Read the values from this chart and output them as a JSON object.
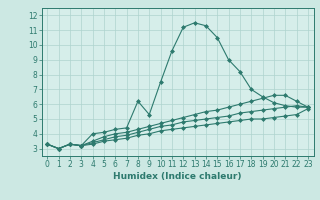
{
  "xlabel": "Humidex (Indice chaleur)",
  "x_values": [
    0,
    1,
    2,
    3,
    4,
    5,
    6,
    7,
    8,
    9,
    10,
    11,
    12,
    13,
    14,
    15,
    16,
    17,
    18,
    19,
    20,
    21,
    22,
    23
  ],
  "line1": [
    3.3,
    3.0,
    3.3,
    3.2,
    4.0,
    4.1,
    4.3,
    4.4,
    6.2,
    5.3,
    7.5,
    9.6,
    11.2,
    11.5,
    11.3,
    10.5,
    9.0,
    8.2,
    7.0,
    6.5,
    6.1,
    5.9,
    5.8,
    5.8
  ],
  "line2": [
    3.3,
    3.0,
    3.3,
    3.2,
    3.5,
    3.8,
    4.0,
    4.1,
    4.3,
    4.5,
    4.7,
    4.9,
    5.1,
    5.3,
    5.5,
    5.6,
    5.8,
    6.0,
    6.2,
    6.4,
    6.6,
    6.6,
    6.2,
    5.8
  ],
  "line3": [
    3.3,
    3.0,
    3.3,
    3.2,
    3.4,
    3.6,
    3.8,
    3.9,
    4.1,
    4.3,
    4.5,
    4.6,
    4.8,
    4.9,
    5.0,
    5.1,
    5.2,
    5.4,
    5.5,
    5.6,
    5.7,
    5.8,
    5.9,
    5.8
  ],
  "line4": [
    3.3,
    3.0,
    3.3,
    3.2,
    3.3,
    3.5,
    3.6,
    3.7,
    3.9,
    4.0,
    4.2,
    4.3,
    4.4,
    4.5,
    4.6,
    4.7,
    4.8,
    4.9,
    5.0,
    5.0,
    5.1,
    5.2,
    5.3,
    5.7
  ],
  "line_color": "#2d7a6e",
  "bg_color": "#cce8e3",
  "grid_color": "#aed4ce",
  "plot_bg": "#d6eeea",
  "xlim": [
    -0.5,
    23.5
  ],
  "ylim": [
    2.5,
    12.5
  ],
  "xticks": [
    0,
    1,
    2,
    3,
    4,
    5,
    6,
    7,
    8,
    9,
    10,
    11,
    12,
    13,
    14,
    15,
    16,
    17,
    18,
    19,
    20,
    21,
    22,
    23
  ],
  "yticks": [
    3,
    4,
    5,
    6,
    7,
    8,
    9,
    10,
    11,
    12
  ],
  "marker": "D",
  "markersize": 2,
  "linewidth": 0.8,
  "tick_fontsize": 5.5,
  "xlabel_fontsize": 6.5
}
